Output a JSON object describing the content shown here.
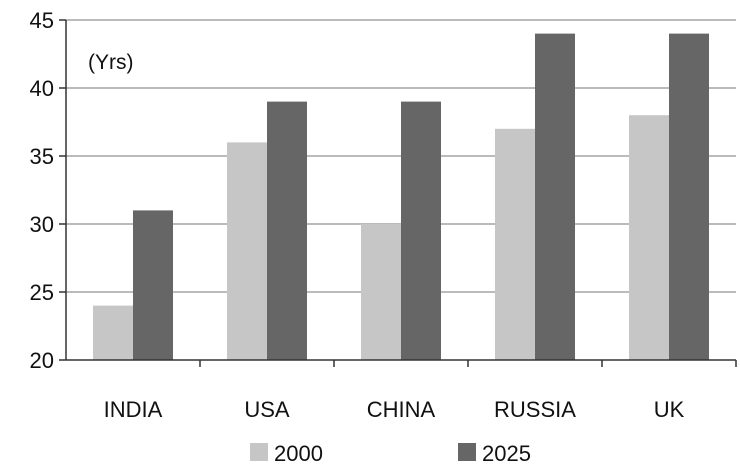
{
  "chart_data": {
    "type": "bar",
    "unit_label": "(Yrs)",
    "categories": [
      "INDIA",
      "USA",
      "CHINA",
      "RUSSIA",
      "UK"
    ],
    "series": [
      {
        "name": "2000",
        "color": "#c6c6c6",
        "values": [
          24,
          36,
          30,
          37,
          38
        ]
      },
      {
        "name": "2025",
        "color": "#666666",
        "values": [
          31,
          39,
          39,
          44,
          44
        ]
      }
    ],
    "ylim": [
      20,
      45
    ],
    "yticks": [
      20,
      25,
      30,
      35,
      40,
      45
    ],
    "grid": true,
    "legend_position": "bottom"
  }
}
